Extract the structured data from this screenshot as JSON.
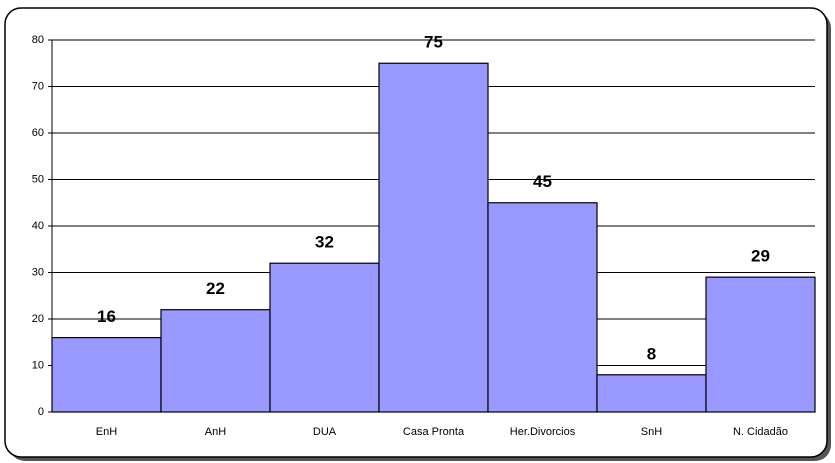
{
  "chart_data": {
    "type": "bar",
    "categories": [
      "EnH",
      "AnH",
      "DUA",
      "Casa Pronta",
      "Her.Divorcios",
      "SnH",
      "N. Cidadão"
    ],
    "values": [
      16,
      22,
      32,
      75,
      45,
      8,
      29
    ],
    "color": "#9999ff",
    "ylim": [
      0,
      80
    ],
    "yticks": [
      0,
      10,
      20,
      30,
      40,
      50,
      60,
      70,
      80
    ],
    "grid": true
  }
}
